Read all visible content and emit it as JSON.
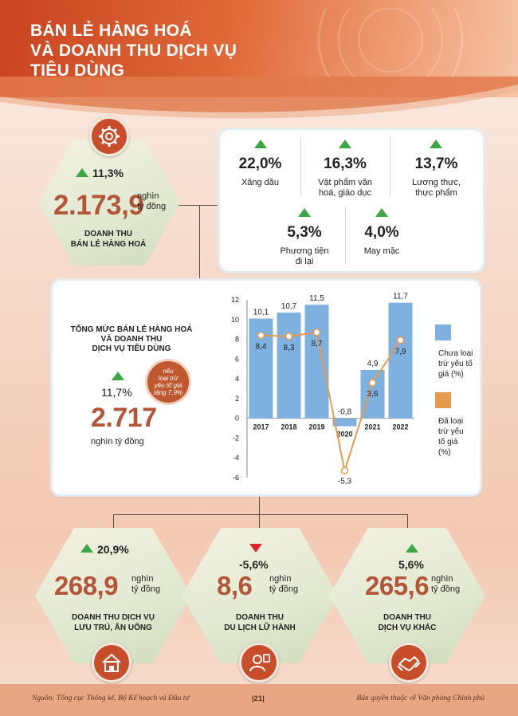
{
  "header": {
    "title_lines": [
      "BÁN LẺ HÀNG HOÁ",
      "VÀ DOANH THU DỊCH VỤ",
      "TIÊU DÙNG"
    ]
  },
  "retail": {
    "growth": "11,3%",
    "value": "2.173,9",
    "unit_lines": [
      "nghìn",
      "tỷ đồng"
    ],
    "label_lines": [
      "DOANH THU",
      "BÁN LẺ HÀNG HOÁ"
    ],
    "icon": "gear-icon",
    "trend": "up"
  },
  "categories": [
    {
      "value": "22,0%",
      "name_lines": [
        "Xăng dầu"
      ]
    },
    {
      "value": "16,3%",
      "name_lines": [
        "Vật phẩm văn",
        "hoá, giáo dục"
      ]
    },
    {
      "value": "13,7%",
      "name_lines": [
        "Lương thực,",
        "thực phẩm"
      ]
    },
    {
      "value": "5,3%",
      "name_lines": [
        "Phương tiện",
        "đi lại"
      ]
    },
    {
      "value": "4,0%",
      "name_lines": [
        "May mặc"
      ]
    }
  ],
  "total": {
    "title_lines": [
      "TỔNG MỨC BÁN LẺ HÀNG HOÁ",
      "VÀ DOANH THU",
      "DỊCH VỤ TIÊU DÙNG"
    ],
    "growth": "11,7%",
    "value": "2.717",
    "unit": "nghìn tỷ đồng",
    "note_lines": [
      "nếu",
      "loại trừ",
      "yếu tố giá",
      "tăng 7,9%"
    ]
  },
  "chart_data": {
    "type": "bar",
    "categories": [
      "2017",
      "2018",
      "2019",
      "2020",
      "2021",
      "2022"
    ],
    "series": [
      {
        "name": "Chưa loại trừ yếu tố giá (%)",
        "kind": "bar",
        "values": [
          10.1,
          10.7,
          11.5,
          -0.8,
          4.9,
          11.7
        ],
        "labels": [
          "10,1",
          "10,7",
          "11,5",
          "-0,8",
          "4,9",
          "11,7"
        ],
        "color": "#7fb1e0"
      },
      {
        "name": "Đã loại trừ yếu tố giá (%)",
        "kind": "line",
        "values": [
          8.4,
          8.3,
          8.7,
          -5.3,
          3.6,
          7.9
        ],
        "labels": [
          "8,4",
          "8,3",
          "8,7",
          "-5,3",
          "3,6",
          "7,9"
        ],
        "color": "#e69a4f"
      }
    ],
    "ylim": [
      -6,
      12
    ],
    "yticks": [
      -6,
      -4,
      -2,
      0,
      2,
      4,
      6,
      8,
      10,
      12
    ],
    "legend_position": "right",
    "legend_lines": [
      [
        "Chưa loại",
        "trừ yếu tố",
        "giá (%)"
      ],
      [
        "Đã loại",
        "trừ yếu",
        "tố giá",
        "(%)"
      ]
    ]
  },
  "services": [
    {
      "growth": "20,9%",
      "trend": "up",
      "value": "268,9",
      "unit_lines": [
        "nghìn",
        "tỷ đồng"
      ],
      "label_lines": [
        "DOANH THU DỊCH VỤ",
        "LƯU TRÚ, ĂN UỐNG"
      ],
      "icon": "house-icon"
    },
    {
      "growth": "-5,6%",
      "trend": "down",
      "value": "8,6",
      "unit_lines": [
        "nghìn",
        "tỷ đồng"
      ],
      "label_lines": [
        "DOANH THU",
        "DU LỊCH LỮ HÀNH"
      ],
      "icon": "tour-guide-icon"
    },
    {
      "growth": "5,6%",
      "trend": "up",
      "value": "265,6",
      "unit_lines": [
        "nghìn",
        "tỷ đồng"
      ],
      "label_lines": [
        "DOANH THU",
        "DỊCH VỤ KHÁC"
      ],
      "icon": "handshake-icon"
    }
  ],
  "footer": {
    "source": "Nguồn: Tổng cục Thống kê, Bộ Kế hoạch và Đầu tư",
    "page": "|21|",
    "copyright": "Bản quyền thuộc về Văn phòng Chính phủ"
  },
  "colors": {
    "accent": "#c84d2a",
    "bar": "#7fb1e0",
    "line": "#e69a4f",
    "up": "#3aa646",
    "down": "#d8262a",
    "value": "#b2563a"
  }
}
